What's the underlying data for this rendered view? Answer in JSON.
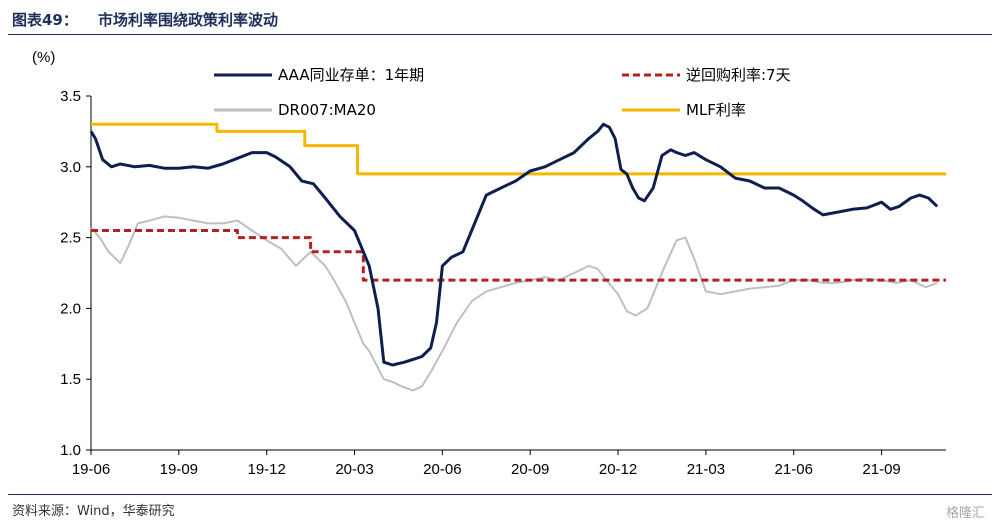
{
  "header": {
    "figure_label": "图表49：",
    "title": "市场利率围绕政策利率波动"
  },
  "footer": {
    "source": "资料来源：Wind，华泰研究",
    "watermark": "格隆汇"
  },
  "chart_data": {
    "type": "line",
    "title": "市场利率围绕政策利率波动",
    "ylabel": "(%)",
    "xlabel": "",
    "ylim": [
      1.0,
      3.5
    ],
    "xlim": [
      0,
      29.2
    ],
    "yticks": [
      "1.0",
      "1.5",
      "2.0",
      "2.5",
      "3.0",
      "3.5"
    ],
    "x_tick_labels": [
      "19-06",
      "19-09",
      "19-12",
      "20-03",
      "20-06",
      "20-09",
      "20-12",
      "21-03",
      "21-06",
      "21-09"
    ],
    "x_tick_months": [
      0,
      3,
      6,
      9,
      12,
      15,
      18,
      21,
      24,
      27
    ],
    "legend": [
      "AAA同业存单：1年期",
      "逆回购利率:7天",
      "DR007:MA20",
      "MLF利率"
    ],
    "legend_position": "top",
    "series": [
      {
        "name": "AAA同业存单：1年期",
        "color": "#0e1f4f",
        "style": "solid",
        "x": [
          0,
          0.15,
          0.4,
          0.7,
          1.0,
          1.5,
          2.0,
          2.5,
          3.0,
          3.5,
          4.0,
          4.5,
          5.0,
          5.5,
          6.0,
          6.3,
          6.8,
          7.2,
          7.6,
          8.0,
          8.5,
          9.0,
          9.5,
          9.8,
          10.0,
          10.3,
          10.7,
          11.0,
          11.3,
          11.6,
          11.8,
          12.0,
          12.3,
          12.7,
          13.0,
          13.5,
          14.0,
          14.5,
          15.0,
          15.5,
          16.0,
          16.5,
          17.0,
          17.3,
          17.5,
          17.7,
          17.9,
          18.1,
          18.3,
          18.5,
          18.7,
          18.9,
          19.2,
          19.5,
          19.8,
          20.0,
          20.3,
          20.6,
          21.0,
          21.5,
          22.0,
          22.5,
          23.0,
          23.5,
          24.0,
          24.3,
          24.7,
          25.0,
          25.5,
          26.0,
          26.5,
          27.0,
          27.3,
          27.6,
          28.0,
          28.3,
          28.6,
          28.9
        ],
        "y": [
          3.25,
          3.2,
          3.05,
          3.0,
          3.02,
          3.0,
          3.01,
          2.99,
          2.99,
          3.0,
          2.99,
          3.02,
          3.06,
          3.1,
          3.1,
          3.07,
          3.0,
          2.9,
          2.88,
          2.78,
          2.65,
          2.55,
          2.3,
          2.0,
          1.62,
          1.6,
          1.62,
          1.64,
          1.66,
          1.72,
          1.9,
          2.3,
          2.36,
          2.4,
          2.55,
          2.8,
          2.85,
          2.9,
          2.97,
          3.0,
          3.05,
          3.1,
          3.2,
          3.25,
          3.3,
          3.28,
          3.2,
          2.98,
          2.95,
          2.85,
          2.78,
          2.76,
          2.85,
          3.08,
          3.12,
          3.1,
          3.08,
          3.1,
          3.05,
          3.0,
          2.92,
          2.9,
          2.85,
          2.85,
          2.8,
          2.76,
          2.7,
          2.66,
          2.68,
          2.7,
          2.71,
          2.75,
          2.7,
          2.72,
          2.78,
          2.8,
          2.78,
          2.72
        ]
      },
      {
        "name": "逆回购利率:7天",
        "color": "#b22222",
        "style": "dashed",
        "x": [
          0,
          5.0,
          5.0,
          7.5,
          7.5,
          9.0,
          9.0,
          9.3,
          9.3,
          29.2
        ],
        "y": [
          2.55,
          2.55,
          2.5,
          2.5,
          2.4,
          2.4,
          2.4,
          2.4,
          2.2,
          2.2
        ]
      },
      {
        "name": "DR007:MA20",
        "color": "#bfbfbf",
        "style": "solid",
        "x": [
          0,
          0.3,
          0.6,
          1.0,
          1.3,
          1.6,
          2.0,
          2.5,
          3.0,
          3.5,
          4.0,
          4.5,
          5.0,
          5.5,
          6.0,
          6.5,
          7.0,
          7.5,
          8.0,
          8.3,
          8.7,
          9.0,
          9.3,
          9.5,
          9.7,
          10.0,
          10.3,
          10.6,
          11.0,
          11.3,
          11.6,
          12.0,
          12.5,
          13.0,
          13.5,
          14.0,
          14.5,
          15.0,
          15.5,
          16.0,
          16.5,
          17.0,
          17.3,
          17.6,
          18.0,
          18.3,
          18.6,
          19.0,
          19.3,
          19.6,
          20.0,
          20.3,
          20.6,
          21.0,
          21.5,
          22.0,
          22.5,
          23.0,
          23.5,
          24.0,
          24.5,
          25.0,
          25.5,
          26.0,
          26.5,
          27.0,
          27.5,
          28.0,
          28.5,
          28.9
        ],
        "y": [
          2.57,
          2.5,
          2.4,
          2.32,
          2.45,
          2.6,
          2.62,
          2.65,
          2.64,
          2.62,
          2.6,
          2.6,
          2.62,
          2.55,
          2.48,
          2.42,
          2.3,
          2.4,
          2.3,
          2.2,
          2.05,
          1.9,
          1.75,
          1.7,
          1.62,
          1.5,
          1.48,
          1.45,
          1.42,
          1.45,
          1.55,
          1.7,
          1.9,
          2.05,
          2.12,
          2.15,
          2.18,
          2.2,
          2.22,
          2.2,
          2.25,
          2.3,
          2.28,
          2.2,
          2.1,
          1.98,
          1.95,
          2.0,
          2.15,
          2.3,
          2.48,
          2.5,
          2.35,
          2.12,
          2.1,
          2.12,
          2.14,
          2.15,
          2.16,
          2.2,
          2.2,
          2.18,
          2.18,
          2.2,
          2.21,
          2.2,
          2.18,
          2.2,
          2.15,
          2.18
        ]
      },
      {
        "name": "MLF利率",
        "color": "#f5b800",
        "style": "solid",
        "x": [
          0,
          4.3,
          4.3,
          7.3,
          7.3,
          9.1,
          9.1,
          12.0,
          29.2
        ],
        "y": [
          3.3,
          3.3,
          3.25,
          3.25,
          3.15,
          3.15,
          2.95,
          2.95,
          2.95
        ]
      }
    ]
  }
}
